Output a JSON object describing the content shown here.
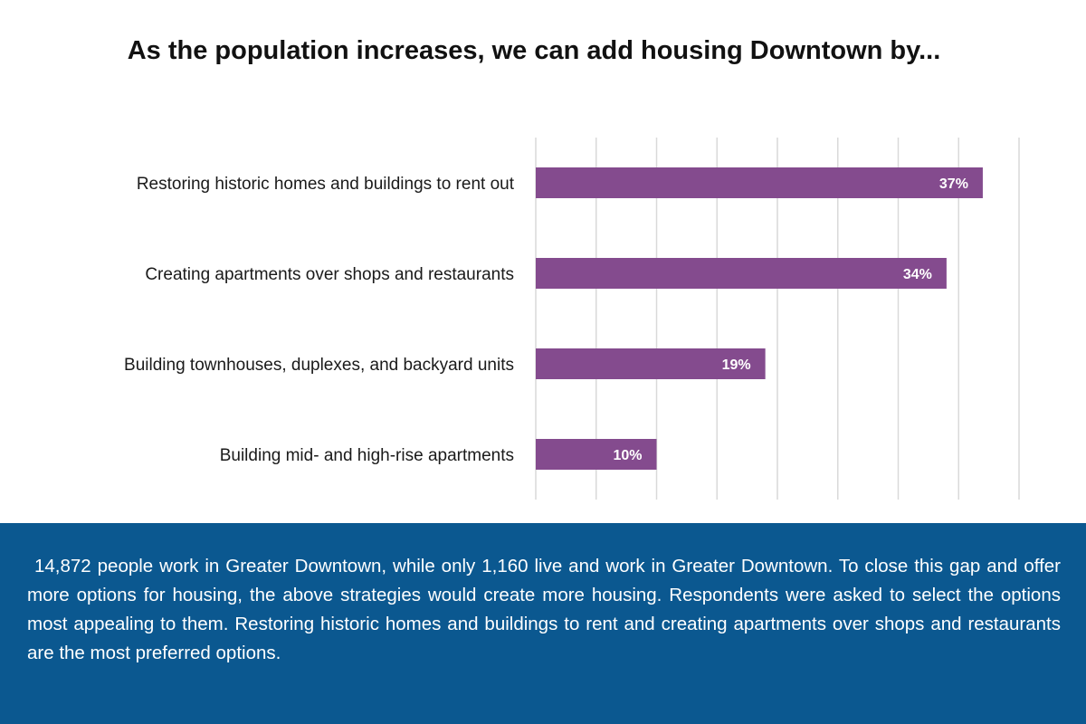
{
  "title": "As the population increases, we can add housing Downtown by...",
  "chart_data": {
    "type": "bar",
    "orientation": "horizontal",
    "title": "As the population increases, we can add housing Downtown by...",
    "categories": [
      "Restoring historic homes and buildings to rent out",
      "Creating apartments over shops and restaurants",
      "Building townhouses, duplexes, and backyard units",
      "Building mid- and high-rise apartments"
    ],
    "values": [
      37,
      34,
      19,
      10
    ],
    "labels": [
      "37%",
      "34%",
      "19%",
      "10%"
    ],
    "xlim": [
      0,
      40
    ],
    "grid": true,
    "xlabel": "",
    "ylabel": "",
    "bar_color": "#844b8e"
  },
  "footer": {
    "text": "14,872 people work in Greater Downtown, while only 1,160 live and work in Greater Downtown. To close this gap and offer more options for housing, the above strategies would create more housing. Respondents were asked to select the options most appealing to them. Restoring historic homes and buildings to rent and creating apartments over shops and restaurants are the most preferred options.",
    "background": "#0b5890"
  }
}
